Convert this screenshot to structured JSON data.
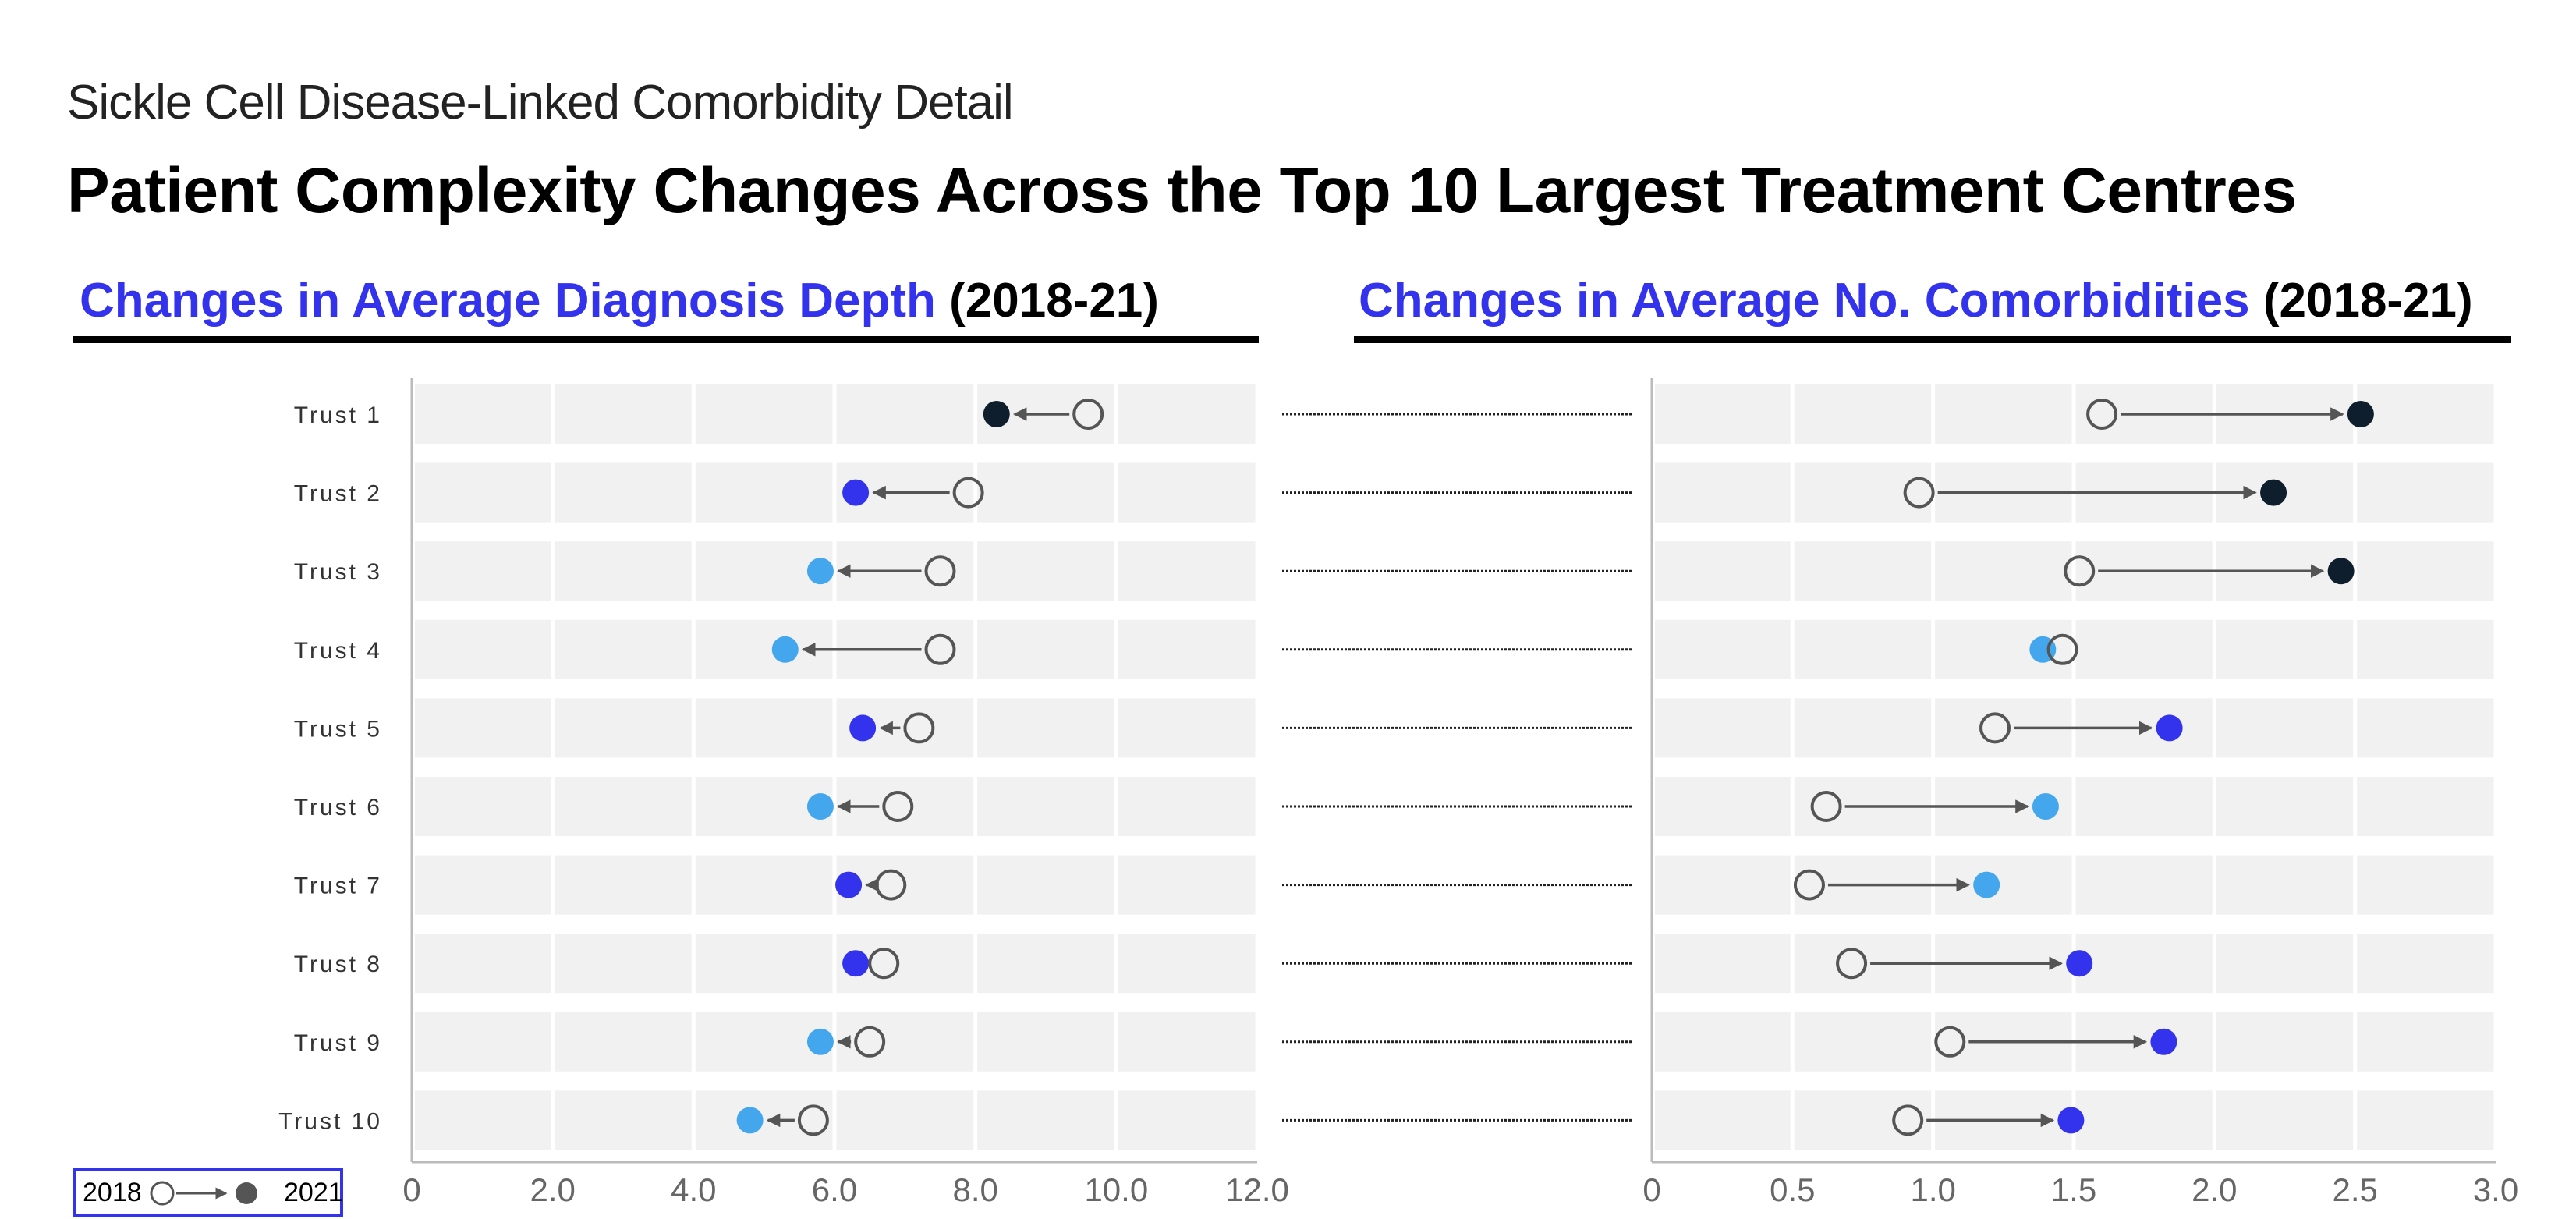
{
  "header": {
    "subtitle": "Sickle Cell Disease-Linked Comorbidity Detail",
    "title": "Patient Complexity Changes Across the Top 10 Largest Treatment Centres"
  },
  "panels": {
    "left": {
      "title_accent": "Changes in Average Diagnosis Depth",
      "title_plain": "(2018-21)"
    },
    "right": {
      "title_accent": "Changes in Average No. Comorbidities",
      "title_plain": "(2018-21)"
    }
  },
  "legend": {
    "start_label": "2018",
    "end_label": "2021"
  },
  "colors": {
    "dark": "#0f1e2c",
    "blue": "#3333ee",
    "light_blue": "#44a7ee",
    "band": "#f1f1f1",
    "arrow": "#555555",
    "open_marker_stroke": "#555555"
  },
  "chart_data": [
    {
      "type": "dumbbell",
      "title": "Changes in Average Diagnosis Depth (2018-21)",
      "categories": [
        "Trust 1",
        "Trust 2",
        "Trust 3",
        "Trust 4",
        "Trust 5",
        "Trust 6",
        "Trust 7",
        "Trust 8",
        "Trust 9",
        "Trust 10"
      ],
      "series": [
        {
          "name": "2018",
          "values": [
            9.6,
            7.9,
            7.5,
            7.5,
            7.2,
            6.9,
            6.8,
            6.7,
            6.5,
            5.7
          ]
        },
        {
          "name": "2021",
          "values": [
            8.3,
            6.3,
            5.8,
            5.3,
            6.4,
            5.8,
            6.2,
            6.3,
            5.8,
            4.8
          ]
        }
      ],
      "end_color": [
        "dark",
        "blue",
        "light_blue",
        "light_blue",
        "blue",
        "light_blue",
        "blue",
        "blue",
        "light_blue",
        "light_blue"
      ],
      "xlim": [
        0,
        12
      ],
      "xticks": [
        "0",
        "2.0",
        "4.0",
        "6.0",
        "8.0",
        "10.0",
        "12.0"
      ],
      "xtick_values": [
        0,
        2,
        4,
        6,
        8,
        10,
        12
      ],
      "xlabel": "",
      "ylabel": ""
    },
    {
      "type": "dumbbell",
      "title": "Changes in Average No. Comorbidities (2018-21)",
      "categories": [
        "Trust 1",
        "Trust 2",
        "Trust 3",
        "Trust 4",
        "Trust 5",
        "Trust 6",
        "Trust 7",
        "Trust 8",
        "Trust 9",
        "Trust 10"
      ],
      "series": [
        {
          "name": "2018",
          "values": [
            1.6,
            0.95,
            1.52,
            1.46,
            1.22,
            0.62,
            0.56,
            0.71,
            1.06,
            0.91
          ]
        },
        {
          "name": "2021",
          "values": [
            2.52,
            2.21,
            2.45,
            1.39,
            1.84,
            1.4,
            1.19,
            1.52,
            1.82,
            1.49
          ]
        }
      ],
      "end_color": [
        "dark",
        "dark",
        "dark",
        "light_blue",
        "blue",
        "light_blue",
        "light_blue",
        "blue",
        "blue",
        "blue"
      ],
      "xlim": [
        0,
        3
      ],
      "xticks": [
        "0",
        "0.5",
        "1.0",
        "1.5",
        "2.0",
        "2.5",
        "3.0"
      ],
      "xtick_values": [
        0,
        0.5,
        1,
        1.5,
        2,
        2.5,
        3
      ],
      "xlabel": "",
      "ylabel": ""
    }
  ]
}
